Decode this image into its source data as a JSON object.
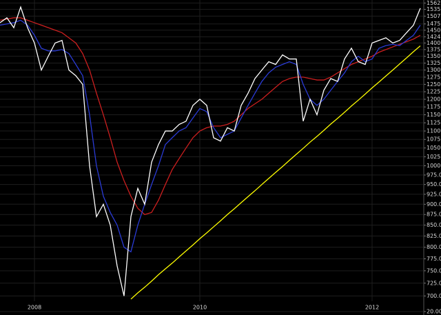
{
  "chart_data": {
    "type": "line",
    "log_scale": true,
    "grid": true,
    "background": "#000000",
    "categories": [
      null,
      null,
      null,
      null,
      null,
      "2008",
      null,
      null,
      null,
      null,
      null,
      null,
      null,
      null,
      null,
      null,
      null,
      null,
      null,
      null,
      null,
      null,
      null,
      null,
      null,
      null,
      null,
      null,
      null,
      "2010",
      null,
      null,
      null,
      null,
      null,
      null,
      null,
      null,
      null,
      null,
      null,
      null,
      null,
      null,
      null,
      null,
      null,
      null,
      null,
      null,
      null,
      null,
      null,
      null,
      "2012",
      null,
      null,
      null,
      null,
      null,
      null,
      null
    ],
    "ylim": [
      690,
      1575
    ],
    "yticks": [
      1562,
      1535,
      1507,
      1475,
      1450,
      1424,
      1400,
      1375,
      1350,
      1325,
      1300,
      1275,
      1250,
      1225,
      1200,
      1175,
      1150,
      1125,
      1100,
      1075,
      1050,
      1025,
      1000,
      {
        "value": 975,
        "label": "975.00"
      },
      {
        "value": 950,
        "label": "950.00"
      },
      {
        "value": 925,
        "label": "925.00"
      },
      {
        "value": 900,
        "label": "900.00"
      },
      {
        "value": 875,
        "label": "875.00"
      },
      {
        "value": 850,
        "label": "850.00"
      },
      {
        "value": 825,
        "label": "825.00"
      },
      {
        "value": 800,
        "label": "800.00"
      },
      {
        "value": 775,
        "label": "775.00"
      },
      {
        "value": 750,
        "label": "750.00"
      },
      {
        "value": 725,
        "label": "725.00"
      },
      {
        "value": 700,
        "label": "700.00"
      }
    ],
    "y2lim": [
      0,
      20
    ],
    "y2ticks": [
      {
        "value": 20,
        "label": "20.00"
      }
    ],
    "series": [
      {
        "color": "#cc1f1f",
        "values": [
          1490,
          1495,
          1500,
          1500,
          1490,
          1480,
          1470,
          1460,
          1450,
          1440,
          1420,
          1400,
          1360,
          1300,
          1220,
          1150,
          1080,
          1010,
          960,
          920,
          890,
          875,
          880,
          910,
          950,
          990,
          1020,
          1050,
          1080,
          1100,
          1110,
          1115,
          1115,
          1120,
          1130,
          1150,
          1170,
          1185,
          1200,
          1220,
          1240,
          1260,
          1270,
          1275,
          1275,
          1270,
          1265,
          1265,
          1275,
          1290,
          1305,
          1320,
          1330,
          1340,
          1350,
          1365,
          1375,
          1385,
          1395,
          1405,
          1415,
          1430
        ]
      },
      {
        "color": "#2a3bd6",
        "values": [
          1470,
          1475,
          1480,
          1490,
          1470,
          1430,
          1380,
          1370,
          1370,
          1375,
          1360,
          1320,
          1280,
          1150,
          1000,
          920,
          880,
          850,
          800,
          790,
          850,
          900,
          950,
          1000,
          1060,
          1080,
          1100,
          1110,
          1140,
          1170,
          1160,
          1110,
          1080,
          1090,
          1100,
          1140,
          1180,
          1220,
          1260,
          1290,
          1310,
          1320,
          1330,
          1320,
          1250,
          1200,
          1180,
          1200,
          1230,
          1260,
          1290,
          1330,
          1350,
          1330,
          1340,
          1380,
          1390,
          1395,
          1390,
          1410,
          1430,
          1470
        ]
      },
      {
        "color": "#ffffff",
        "values": [
          1480,
          1500,
          1460,
          1545,
          1460,
          1400,
          1300,
          1350,
          1400,
          1410,
          1300,
          1280,
          1250,
          1000,
          870,
          900,
          850,
          760,
          700,
          870,
          940,
          900,
          1010,
          1060,
          1100,
          1100,
          1120,
          1130,
          1180,
          1200,
          1180,
          1080,
          1070,
          1110,
          1100,
          1180,
          1220,
          1270,
          1300,
          1330,
          1320,
          1355,
          1340,
          1340,
          1130,
          1200,
          1150,
          1230,
          1270,
          1260,
          1340,
          1380,
          1330,
          1320,
          1400,
          1410,
          1420,
          1400,
          1410,
          1440,
          1470,
          1540
        ]
      },
      {
        "color": "#ffff00",
        "values": [
          null,
          null,
          null,
          null,
          null,
          null,
          null,
          null,
          null,
          null,
          null,
          null,
          null,
          null,
          null,
          null,
          null,
          null,
          null,
          694,
          706,
          717,
          729,
          742,
          754,
          766,
          779,
          792,
          805,
          819,
          832,
          846,
          860,
          875,
          889,
          904,
          919,
          934,
          950,
          966,
          982,
          998,
          1015,
          1032,
          1049,
          1067,
          1084,
          1102,
          1121,
          1139,
          1158,
          1178,
          1197,
          1217,
          1238,
          1258,
          1279,
          1300,
          1322,
          1344,
          1367,
          1389
        ]
      }
    ]
  }
}
